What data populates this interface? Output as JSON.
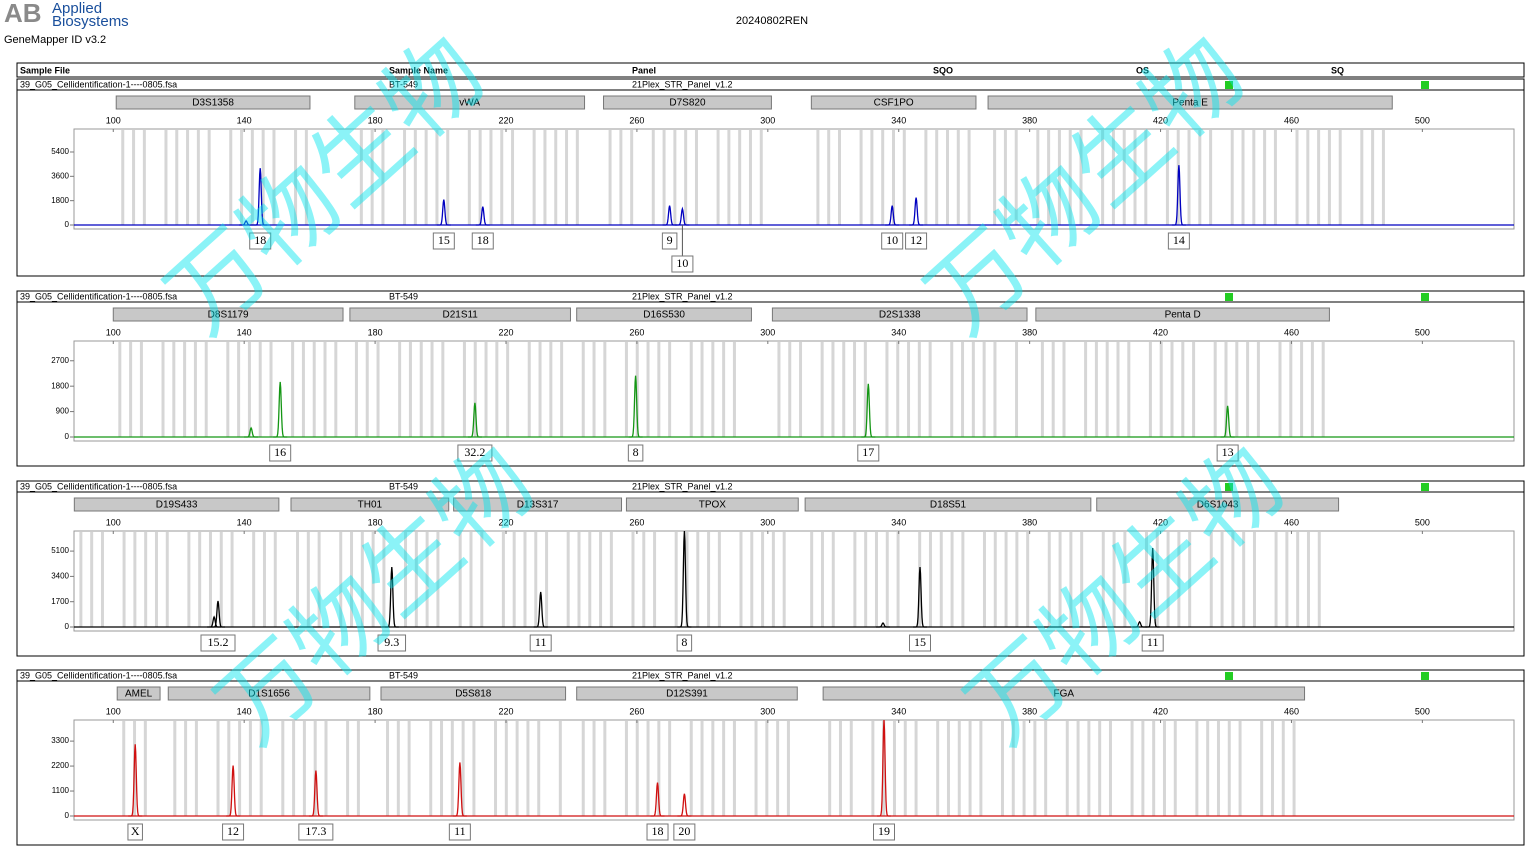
{
  "header": {
    "logo_mark": "AB",
    "logo_line1": "Applied",
    "logo_line2": "Biosystems",
    "software": "GeneMapper ID v3.2",
    "title": "20240802REN"
  },
  "columns": [
    "Sample File",
    "Sample Name",
    "Panel",
    "SQO",
    "OS",
    "SQ"
  ],
  "watermark": "万物生物",
  "chart_data": [
    {
      "type": "line",
      "sample_file": "39_G05_Cellidentification-1----0805.fsa",
      "sample_name": "BT-549",
      "panel": "21Plex_STR_Panel_v1.2",
      "color": "#0000c0",
      "status_color": "#22cc22",
      "markers": [
        {
          "name": "D3S1358",
          "range": [
            100.9,
            160.1
          ]
        },
        {
          "name": "vWA",
          "range": [
            173.8,
            244
          ]
        },
        {
          "name": "D7S820",
          "range": [
            249.8,
            301.1
          ]
        },
        {
          "name": "CSF1PO",
          "range": [
            313.3,
            363.6
          ]
        },
        {
          "name": "Penta E",
          "range": [
            367.3,
            490.8
          ]
        }
      ],
      "xlim": [
        88,
        528
      ],
      "xticks": [
        100,
        140,
        180,
        220,
        260,
        300,
        340,
        380,
        420,
        460,
        500
      ],
      "ylim": [
        0,
        7100
      ],
      "yticks": [
        0,
        1800,
        3600,
        5400
      ],
      "x": [
        140.6,
        144.9,
        201,
        212.9,
        270,
        273.9,
        338,
        345.3,
        425.6
      ],
      "values": [
        300,
        4200,
        1875,
        1350,
        1425,
        1200,
        1425,
        2025,
        4425
      ],
      "labels": [
        null,
        "18",
        "15",
        "18",
        "9",
        "10",
        "10",
        "12",
        "14"
      ]
    },
    {
      "type": "line",
      "sample_file": "39_G05_Cellidentification-1----0805.fsa",
      "sample_name": "BT-549",
      "panel": "21Plex_STR_Panel_v1.2",
      "color": "#149614",
      "status_color": "#22cc22",
      "markers": [
        {
          "name": "D8S1179",
          "range": [
            100,
            170.2
          ]
        },
        {
          "name": "D21S11",
          "range": [
            172.3,
            239.7
          ]
        },
        {
          "name": "D16S530",
          "range": [
            241.6,
            295
          ]
        },
        {
          "name": "D2S1338",
          "range": [
            301.4,
            379.2
          ]
        },
        {
          "name": "Penta D",
          "range": [
            381.9,
            471.6
          ]
        }
      ],
      "xlim": [
        88,
        528
      ],
      "xticks": [
        100,
        140,
        180,
        220,
        260,
        300,
        340,
        380,
        420,
        460,
        500
      ],
      "ylim": [
        0,
        3400
      ],
      "yticks": [
        0,
        900,
        1800,
        2700
      ],
      "x": [
        142.1,
        151,
        210.5,
        259.6,
        330.7,
        440.5
      ],
      "values": [
        320,
        1950,
        1210,
        2170,
        1885,
        1100
      ],
      "labels": [
        null,
        "16",
        "32.2",
        "8",
        "17",
        "13"
      ]
    },
    {
      "type": "line",
      "sample_file": "39_G05_Cellidentification-1----0805.fsa",
      "sample_name": "BT-549",
      "panel": "21Plex_STR_Panel_v1.2",
      "color": "#000000",
      "status_color": "#22cc22",
      "markers": [
        {
          "name": "D19S433",
          "range": [
            88.1,
            150.6
          ]
        },
        {
          "name": "TH01",
          "range": [
            154.3,
            202.5
          ]
        },
        {
          "name": "D13S317",
          "range": [
            204,
            255.3
          ]
        },
        {
          "name": "TPOX",
          "range": [
            256.8,
            309.3
          ]
        },
        {
          "name": "D18S51",
          "range": [
            311.4,
            398.7
          ]
        },
        {
          "name": "D6S1043",
          "range": [
            400.5,
            474.4
          ]
        }
      ],
      "xlim": [
        88,
        528
      ],
      "xticks": [
        100,
        140,
        180,
        220,
        260,
        300,
        340,
        380,
        420,
        460,
        500
      ],
      "ylim": [
        0,
        6450
      ],
      "yticks": [
        0,
        1700,
        3400,
        5100
      ],
      "x": [
        130.8,
        132,
        185.1,
        230.6,
        274.5,
        335.2,
        346.5,
        413.6,
        417.6
      ],
      "values": [
        670,
        1747,
        4030,
        2350,
        6450,
        270,
        4030,
        350,
        5310
      ],
      "labels": [
        null,
        "15.2",
        "9.3",
        "11",
        "8",
        null,
        "15",
        null,
        "11"
      ]
    },
    {
      "type": "line",
      "sample_file": "39_G05_Cellidentification-1----0805.fsa",
      "sample_name": "BT-549",
      "panel": "21Plex_STR_Panel_v1.2",
      "color": "#d01010",
      "status_color": "#22cc22",
      "markers": [
        {
          "name": "AMEL",
          "range": [
            101.2,
            114.3
          ]
        },
        {
          "name": "D1S1656",
          "range": [
            116.8,
            178.4
          ]
        },
        {
          "name": "D5S818",
          "range": [
            181.8,
            238.2
          ]
        },
        {
          "name": "D12S391",
          "range": [
            241.6,
            309
          ]
        },
        {
          "name": "FGA",
          "range": [
            316.9,
            464
          ]
        }
      ],
      "xlim": [
        88,
        528
      ],
      "xticks": [
        100,
        140,
        180,
        220,
        260,
        300,
        340,
        380,
        420,
        460,
        500
      ],
      "ylim": [
        0,
        4230
      ],
      "yticks": [
        0,
        1100,
        2200,
        3300
      ],
      "x": [
        106.7,
        136.6,
        161.9,
        205.9,
        266.3,
        274.5,
        335.5
      ],
      "values": [
        3160,
        2225,
        2000,
        2360,
        1470,
        980,
        4230
      ],
      "labels": [
        "X",
        "12",
        "17.3",
        "11",
        "18",
        "20",
        "19"
      ]
    }
  ]
}
